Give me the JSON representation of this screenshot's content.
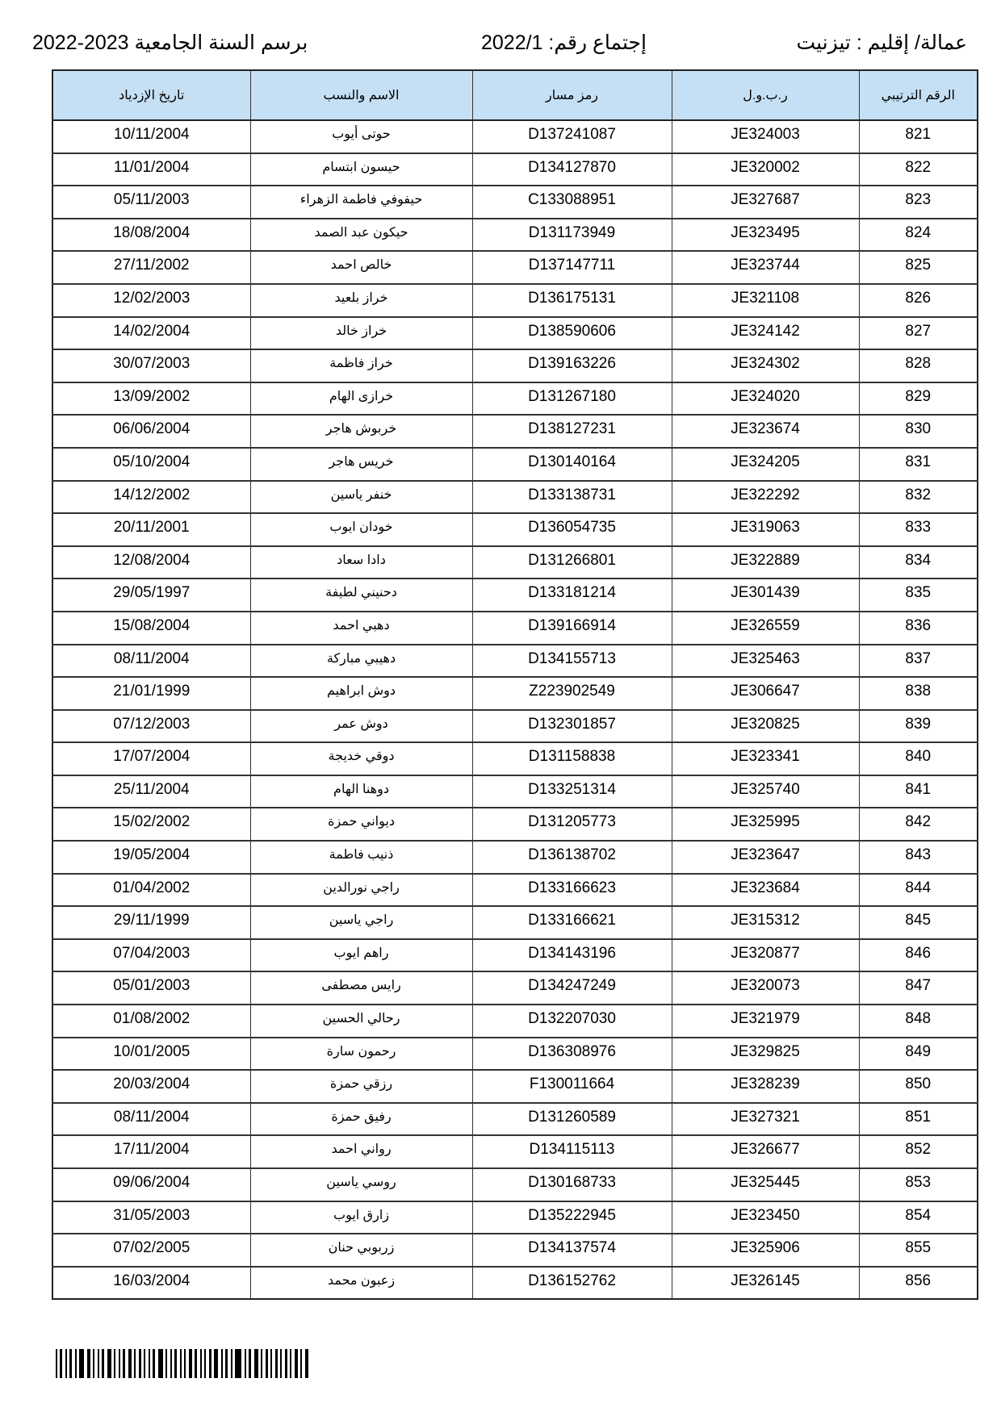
{
  "header": {
    "prefecture": "عمالة/ إقليم : تيزنيت",
    "meeting": "إجتماع رقم: 2022/1",
    "academic_year": "برسم السنة الجامعية 2023-2022"
  },
  "table": {
    "columns": [
      "الرقم الترتيبي",
      "ر.ب.و.ل",
      "رمز مسار",
      "الاسم والنسب",
      "تاريخ الإزدياد"
    ],
    "rows": [
      [
        "821",
        "JE324003",
        "D137241087",
        "حوتى أيوب",
        "10/11/2004"
      ],
      [
        "822",
        "JE320002",
        "D134127870",
        "حيسون ابتسام",
        "11/01/2004"
      ],
      [
        "823",
        "JE327687",
        "C133088951",
        "حيفوفي فاطمة الزهراء",
        "05/11/2003"
      ],
      [
        "824",
        "JE323495",
        "D131173949",
        "حيكون عبد الصمد",
        "18/08/2004"
      ],
      [
        "825",
        "JE323744",
        "D137147711",
        "خالص احمد",
        "27/11/2002"
      ],
      [
        "826",
        "JE321108",
        "D136175131",
        "خراز بلعيد",
        "12/02/2003"
      ],
      [
        "827",
        "JE324142",
        "D138590606",
        "خراز خالد",
        "14/02/2004"
      ],
      [
        "828",
        "JE324302",
        "D139163226",
        "خراز فاظمة",
        "30/07/2003"
      ],
      [
        "829",
        "JE324020",
        "D131267180",
        "خرازى الهام",
        "13/09/2002"
      ],
      [
        "830",
        "JE323674",
        "D138127231",
        "خربوش هاجر",
        "06/06/2004"
      ],
      [
        "831",
        "JE324205",
        "D130140164",
        "خريس هاجر",
        "05/10/2004"
      ],
      [
        "832",
        "JE322292",
        "D133138731",
        "خنفر ياسين",
        "14/12/2002"
      ],
      [
        "833",
        "JE319063",
        "D136054735",
        "خودان ايوب",
        "20/11/2001"
      ],
      [
        "834",
        "JE322889",
        "D131266801",
        "دادا سعاد",
        "12/08/2004"
      ],
      [
        "835",
        "JE301439",
        "D133181214",
        "دحنيني لطيفة",
        "29/05/1997"
      ],
      [
        "836",
        "JE326559",
        "D139166914",
        "دهبي احمد",
        "15/08/2004"
      ],
      [
        "837",
        "JE325463",
        "D134155713",
        "دهيبي مباركة",
        "08/11/2004"
      ],
      [
        "838",
        "JE306647",
        "Z223902549",
        "دوش ابراهيم",
        "21/01/1999"
      ],
      [
        "839",
        "JE320825",
        "D132301857",
        "دوش عمر",
        "07/12/2003"
      ],
      [
        "840",
        "JE323341",
        "D131158838",
        "دوقي خديجة",
        "17/07/2004"
      ],
      [
        "841",
        "JE325740",
        "D133251314",
        "دوهنا الهام",
        "25/11/2004"
      ],
      [
        "842",
        "JE325995",
        "D131205773",
        "ديواني حمزة",
        "15/02/2002"
      ],
      [
        "843",
        "JE323647",
        "D136138702",
        "ذنيب فاطمة",
        "19/05/2004"
      ],
      [
        "844",
        "JE323684",
        "D133166623",
        "راجي نورالدين",
        "01/04/2002"
      ],
      [
        "845",
        "JE315312",
        "D133166621",
        "راجي ياسين",
        "29/11/1999"
      ],
      [
        "846",
        "JE320877",
        "D134143196",
        "راهم ايوب",
        "07/04/2003"
      ],
      [
        "847",
        "JE320073",
        "D134247249",
        "رايس مصطفى",
        "05/01/2003"
      ],
      [
        "848",
        "JE321979",
        "D132207030",
        "رحالي الحسين",
        "01/08/2002"
      ],
      [
        "849",
        "JE329825",
        "D136308976",
        "رحمون سارة",
        "10/01/2005"
      ],
      [
        "850",
        "JE328239",
        "F130011664",
        "رزقي حمزة",
        "20/03/2004"
      ],
      [
        "851",
        "JE327321",
        "D131260589",
        "رفيق حمزة",
        "08/11/2004"
      ],
      [
        "852",
        "JE326677",
        "D134115113",
        "رواني احمد",
        "17/11/2004"
      ],
      [
        "853",
        "JE325445",
        "D130168733",
        "روسي ياسين",
        "09/06/2004"
      ],
      [
        "854",
        "JE323450",
        "D135222945",
        "زارق ايوب",
        "31/05/2003"
      ],
      [
        "855",
        "JE325906",
        "D134137574",
        "زربوبي حنان",
        "07/02/2005"
      ],
      [
        "856",
        "JE326145",
        "D136152762",
        "زعبون محمد",
        "16/03/2004"
      ]
    ]
  },
  "colors": {
    "header_bg": "#c5e0f5",
    "border": "#222222"
  }
}
